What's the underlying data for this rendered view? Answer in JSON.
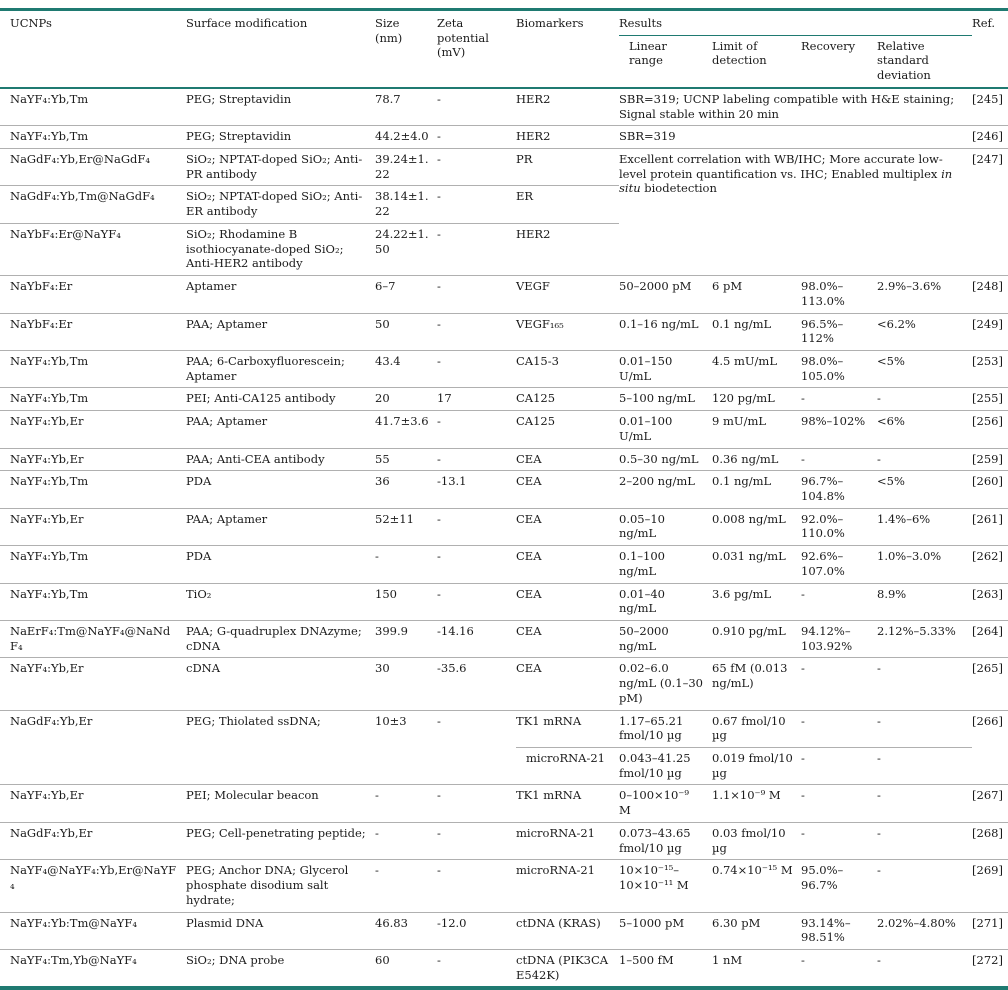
{
  "accent_color": "#1f7a71",
  "separator_color": "#b0b0b0",
  "table": {
    "headers": {
      "ucnps": "UCNPs",
      "surface": "Surface modification",
      "size": "Size (nm)",
      "zeta": "Zeta potential (mV)",
      "biomarkers": "Biomarkers",
      "results": "Results",
      "linear": "Linear range",
      "lod": "Limit of detection",
      "recovery": "Recovery",
      "rsd": "Relative standard deviation",
      "ref": "Ref."
    },
    "rows": [
      {
        "ucnp": "NaYF₄:Yb,Tm",
        "surface": "PEG; Streptavidin",
        "size": "78.7",
        "zeta": "-",
        "biomarker": "HER2",
        "results": "SBR=319; UCNP labeling compatible with H&E staining; Signal stable within 20 min",
        "ref": "[245]"
      },
      {
        "ucnp": "NaYF₄:Yb,Tm",
        "surface": "PEG; Streptavidin",
        "size": "44.2±4.0",
        "zeta": "-",
        "biomarker": "HER2",
        "results": "SBR=319",
        "ref": "[246]"
      },
      {
        "ucnp": "NaGdF₄:Yb,Er@NaGdF₄",
        "surface": "SiO₂; NPTAT-doped SiO₂; Anti-PR antibody",
        "size": "39.24±1.22",
        "zeta": "-",
        "biomarker": "PR",
        "results_pre": "Excellent correlation with WB/IHC; More accurate low-level protein quantification vs. IHC; Enabled multiplex ",
        "results_italic": "in situ",
        "results_post": " biodetection",
        "ref": "[247]"
      },
      {
        "ucnp": "NaGdF₄:Yb,Tm@NaGdF₄",
        "surface": "SiO₂; NPTAT-doped SiO₂; Anti-ER antibody",
        "size": "38.14±1.22",
        "zeta": "-",
        "biomarker": "ER"
      },
      {
        "ucnp": "NaYbF₄:Er@NaYF₄",
        "surface": "SiO₂; Rhodamine B isothiocyanate-doped SiO₂; Anti-HER2 antibody",
        "size": "24.22±1.50",
        "zeta": "-",
        "biomarker": "HER2"
      },
      {
        "ucnp": "NaYbF₄:Er",
        "surface": "Aptamer",
        "size": "6–7",
        "zeta": "-",
        "biomarker": "VEGF",
        "linear": "50–2000 pM",
        "lod": "6 pM",
        "recovery": "98.0%–113.0%",
        "rsd": "2.9%–3.6%",
        "ref": "[248]"
      },
      {
        "ucnp": "NaYbF₄:Er",
        "surface": "PAA; Aptamer",
        "size": "50",
        "zeta": "-",
        "biomarker": "VEGF₁₆₅",
        "linear": "0.1–16 ng/mL",
        "lod": "0.1 ng/mL",
        "recovery": "96.5%–112%",
        "rsd": "<6.2%",
        "ref": "[249]"
      },
      {
        "ucnp": "NaYF₄:Yb,Tm",
        "surface": "PAA; 6-Carboxyfluorescein; Aptamer",
        "size": "43.4",
        "zeta": "-",
        "biomarker": "CA15-3",
        "linear": "0.01–150 U/mL",
        "lod": "4.5 mU/mL",
        "recovery": "98.0%–105.0%",
        "rsd": "<5%",
        "ref": "[253]"
      },
      {
        "ucnp": "NaYF₄:Yb,Tm",
        "surface": "PEI; Anti-CA125 antibody",
        "size": "20",
        "zeta": "17",
        "biomarker": "CA125",
        "linear": "5–100 ng/mL",
        "lod": "120 pg/mL",
        "recovery": "-",
        "rsd": "-",
        "ref": "[255]"
      },
      {
        "ucnp": "NaYF₄:Yb,Er",
        "surface": "PAA; Aptamer",
        "size": "41.7±3.6",
        "zeta": "-",
        "biomarker": "CA125",
        "linear": "0.01–100 U/mL",
        "lod": "9 mU/mL",
        "recovery": "98%–102%",
        "rsd": "<6%",
        "ref": "[256]"
      },
      {
        "ucnp": "NaYF₄:Yb,Er",
        "surface": "PAA; Anti-CEA antibody",
        "size": "55",
        "zeta": "-",
        "biomarker": "CEA",
        "linear": "0.5–30 ng/mL",
        "lod": "0.36 ng/mL",
        "recovery": "-",
        "rsd": "-",
        "ref": "[259]"
      },
      {
        "ucnp": "NaYF₄:Yb,Tm",
        "surface": "PDA",
        "size": "36",
        "zeta": "-13.1",
        "biomarker": "CEA",
        "linear": "2–200 ng/mL",
        "lod": "0.1 ng/mL",
        "recovery": "96.7%–104.8%",
        "rsd": "<5%",
        "ref": "[260]"
      },
      {
        "ucnp": "NaYF₄:Yb,Er",
        "surface": "PAA; Aptamer",
        "size": "52±11",
        "zeta": "-",
        "biomarker": "CEA",
        "linear": "0.05–10 ng/mL",
        "lod": "0.008 ng/mL",
        "recovery": "92.0%–110.0%",
        "rsd": "1.4%–6%",
        "ref": "[261]"
      },
      {
        "ucnp": "NaYF₄:Yb,Tm",
        "surface": "PDA",
        "size": "-",
        "zeta": "-",
        "biomarker": "CEA",
        "linear": "0.1–100 ng/mL",
        "lod": "0.031 ng/mL",
        "recovery": "92.6%–107.0%",
        "rsd": "1.0%–3.0%",
        "ref": "[262]"
      },
      {
        "ucnp": "NaYF₄:Yb,Tm",
        "surface": "TiO₂",
        "size": "150",
        "zeta": "-",
        "biomarker": "CEA",
        "linear": "0.01–40 ng/mL",
        "lod": "3.6 pg/mL",
        "recovery": "-",
        "rsd": "8.9%",
        "ref": "[263]"
      },
      {
        "ucnp": "NaErF₄:Tm@NaYF₄@NaNdF₄",
        "surface": "PAA; G-quadruplex DNAzyme; cDNA",
        "size": "399.9",
        "zeta": "-14.16",
        "biomarker": "CEA",
        "linear": "50–2000 ng/mL",
        "lod": "0.910 pg/mL",
        "recovery": "94.12%–103.92%",
        "rsd": "2.12%–5.33%",
        "ref": "[264]"
      },
      {
        "ucnp": "NaYF₄:Yb,Er",
        "surface": "cDNA",
        "size": "30",
        "zeta": "-35.6",
        "biomarker": "CEA",
        "linear": "0.02–6.0 ng/mL (0.1–30 pM)",
        "lod": "65 fM (0.013 ng/mL)",
        "recovery": "-",
        "rsd": "-",
        "ref": "[265]"
      },
      {
        "ucnp": "NaGdF₄:Yb,Er",
        "surface": "PEG; Thiolated ssDNA;",
        "size": "10±3",
        "zeta": "-",
        "biomarker": "TK1 mRNA",
        "linear": "1.17–65.21 fmol/10 µg",
        "lod": "0.67 fmol/10 µg",
        "recovery": "-",
        "rsd": "-",
        "ref": "[266]"
      },
      {
        "biomarker": "microRNA-21",
        "linear": "0.043–41.25 fmol/10 µg",
        "lod": "0.019 fmol/10 µg",
        "recovery": "-",
        "rsd": "-"
      },
      {
        "ucnp": "NaYF₄:Yb,Er",
        "surface": "PEI; Molecular beacon",
        "size": "-",
        "zeta": "-",
        "biomarker": "TK1 mRNA",
        "linear": "0–100×10⁻⁹ M",
        "lod": "1.1×10⁻⁹ M",
        "recovery": "-",
        "rsd": "-",
        "ref": "[267]"
      },
      {
        "ucnp": "NaGdF₄:Yb,Er",
        "surface": "PEG; Cell-penetrating peptide;",
        "size": "-",
        "zeta": "-",
        "biomarker": "microRNA-21",
        "linear": "0.073–43.65 fmol/10 µg",
        "lod": "0.03 fmol/10 µg",
        "recovery": "-",
        "rsd": "-",
        "ref": "[268]"
      },
      {
        "ucnp": "NaYF₄@NaYF₄:Yb,Er@NaYF₄",
        "surface": "PEG; Anchor DNA; Glycerol phosphate disodium salt hydrate;",
        "size": "-",
        "zeta": "-",
        "biomarker": "microRNA-21",
        "linear": "10×10⁻¹⁵–10×10⁻¹¹ M",
        "lod": "0.74×10⁻¹⁵ M",
        "recovery": "95.0%–96.7%",
        "rsd": "-",
        "ref": "[269]"
      },
      {
        "ucnp": "NaYF₄:Yb:Tm@NaYF₄",
        "surface": "Plasmid DNA",
        "size": "46.83",
        "zeta": "-12.0",
        "biomarker": "ctDNA (KRAS)",
        "linear": "5–1000 pM",
        "lod": "6.30 pM",
        "recovery": "93.14%–98.51%",
        "rsd": "2.02%–4.80%",
        "ref": "[271]"
      },
      {
        "ucnp": "NaYF₄:Tm,Yb@NaYF₄",
        "surface": "SiO₂; DNA probe",
        "size": "60",
        "zeta": "-",
        "biomarker": "ctDNA (PIK3CA E542K)",
        "linear": "1–500 fM",
        "lod": "1 nM",
        "recovery": "-",
        "rsd": "-",
        "ref": "[272]"
      }
    ]
  }
}
